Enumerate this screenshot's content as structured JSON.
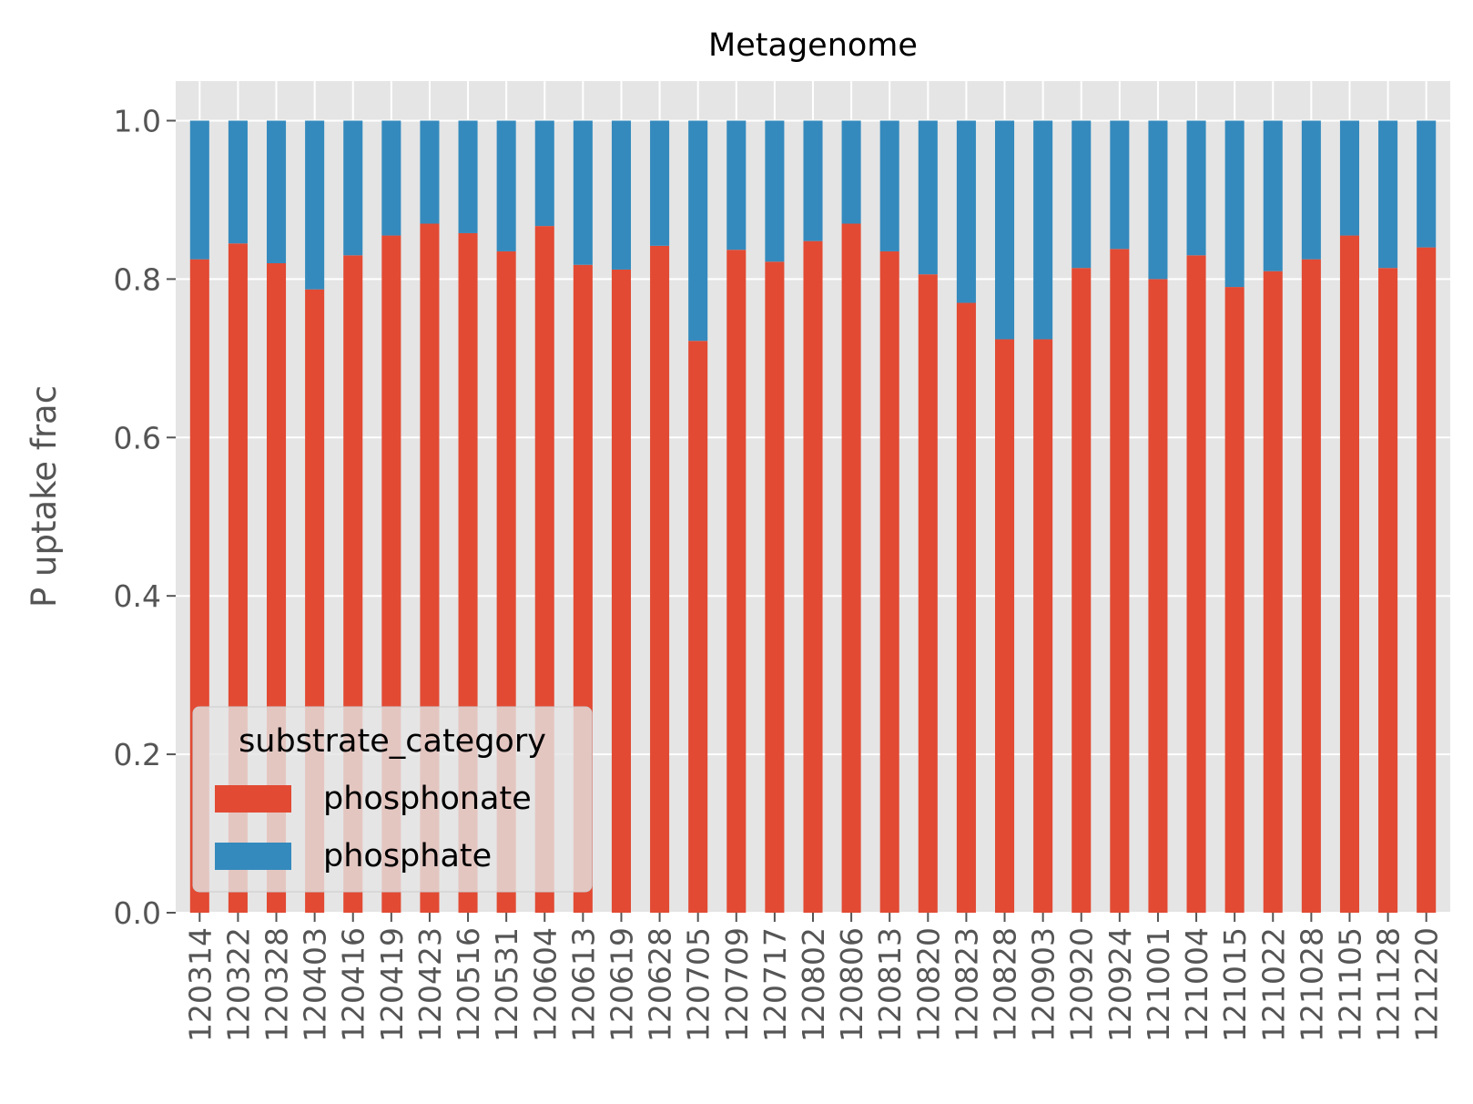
{
  "chart_data": {
    "type": "bar",
    "stacked": true,
    "title": "Metagenome",
    "xlabel": "",
    "ylabel": "P uptake frac",
    "ylim": [
      0,
      1.05
    ],
    "yticks": [
      "0.0",
      "0.2",
      "0.4",
      "0.6",
      "0.8",
      "1.0"
    ],
    "grid": true,
    "legend": {
      "title": "substrate_category",
      "placement": "lower-left"
    },
    "categories": [
      "120314",
      "120322",
      "120328",
      "120403",
      "120416",
      "120419",
      "120423",
      "120516",
      "120531",
      "120604",
      "120613",
      "120619",
      "120628",
      "120705",
      "120709",
      "120717",
      "120802",
      "120806",
      "120813",
      "120820",
      "120823",
      "120828",
      "120903",
      "120920",
      "120924",
      "121001",
      "121004",
      "121015",
      "121022",
      "121028",
      "121105",
      "121128",
      "121220"
    ],
    "series": [
      {
        "name": "phosphonate",
        "color": "#E24A33",
        "values": [
          0.825,
          0.845,
          0.82,
          0.787,
          0.83,
          0.855,
          0.87,
          0.858,
          0.835,
          0.867,
          0.818,
          0.812,
          0.842,
          0.722,
          0.837,
          0.822,
          0.848,
          0.87,
          0.835,
          0.806,
          0.77,
          0.724,
          0.724,
          0.814,
          0.838,
          0.8,
          0.83,
          0.79,
          0.81,
          0.825,
          0.855,
          0.814,
          0.84
        ]
      },
      {
        "name": "phosphate",
        "color": "#348ABD",
        "values": [
          0.175,
          0.155,
          0.18,
          0.213,
          0.17,
          0.145,
          0.13,
          0.142,
          0.165,
          0.133,
          0.182,
          0.188,
          0.158,
          0.278,
          0.163,
          0.178,
          0.152,
          0.13,
          0.165,
          0.194,
          0.23,
          0.276,
          0.276,
          0.186,
          0.162,
          0.2,
          0.17,
          0.21,
          0.19,
          0.175,
          0.145,
          0.186,
          0.16
        ]
      }
    ]
  },
  "colors": {
    "plot_background": "#E5E5E5",
    "grid": "#FFFFFF",
    "tick_text": "#555555"
  }
}
